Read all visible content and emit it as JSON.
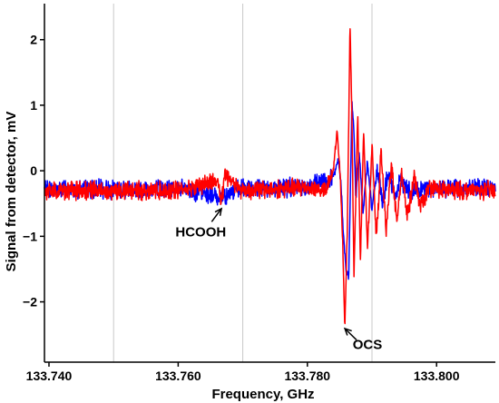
{
  "chart_data": {
    "type": "line",
    "xlabel": "Frequency, GHz",
    "ylabel": "Signal from detector, mV",
    "xlim": [
      133.7393,
      133.8091
    ],
    "ylim": [
      -2.92,
      2.55
    ],
    "x_ticks": [
      133.74,
      133.76,
      133.78,
      133.8
    ],
    "x_tick_labels": [
      "133.740",
      "133.760",
      "133.780",
      "133.800"
    ],
    "y_ticks": [
      2,
      1,
      0,
      -1,
      -2
    ],
    "y_tick_labels": [
      "2",
      "1",
      "0",
      "−1",
      "−2"
    ],
    "vertical_gridlines": [
      133.75,
      133.77,
      133.79
    ],
    "grid": "vertical only",
    "series": [
      {
        "color": "#0000ff",
        "baseline": -0.28,
        "x": [
          133.7393,
          133.75,
          133.76,
          133.7665,
          133.77,
          133.775,
          133.78,
          133.783,
          133.7842,
          133.7848,
          133.7852,
          133.7856,
          133.786,
          133.7864,
          133.7866,
          133.7869,
          133.7872,
          133.7875,
          133.788,
          133.7886,
          133.7893,
          133.79,
          133.7908,
          133.7916,
          133.7925,
          133.7935,
          133.7945,
          133.796,
          133.798,
          133.8,
          133.8091
        ],
        "y": [
          -0.28,
          -0.28,
          -0.27,
          -0.4,
          -0.27,
          -0.26,
          -0.24,
          -0.15,
          -0.05,
          0.15,
          -0.2,
          -1.0,
          -1.55,
          -1.6,
          -0.6,
          1.05,
          0.6,
          -0.45,
          0.35,
          -0.65,
          0.15,
          -0.6,
          0.05,
          -0.5,
          -0.05,
          -0.4,
          -0.15,
          -0.32,
          -0.27,
          -0.27,
          -0.27
        ]
      },
      {
        "color": "#ff0000",
        "baseline": -0.3,
        "x": [
          133.7393,
          133.75,
          133.76,
          133.7662,
          133.7667,
          133.7672,
          133.77,
          133.775,
          133.78,
          133.783,
          133.784,
          133.7846,
          133.7851,
          133.7855,
          133.7858,
          133.7862,
          133.7866,
          133.7869,
          133.7872,
          133.7875,
          133.7878,
          133.7882,
          133.7887,
          133.7893,
          133.79,
          133.7907,
          133.7914,
          133.7922,
          133.793,
          133.7938,
          133.7946,
          133.7955,
          133.7965,
          133.7975,
          133.799,
          133.801,
          133.8091
        ],
        "y": [
          -0.3,
          -0.3,
          -0.3,
          -0.15,
          -0.55,
          -0.05,
          -0.3,
          -0.28,
          -0.25,
          -0.3,
          0.0,
          0.6,
          -0.1,
          -1.2,
          -2.4,
          -0.8,
          2.28,
          0.8,
          -1.6,
          -0.4,
          0.9,
          -1.4,
          0.6,
          -1.2,
          0.4,
          -1.05,
          0.3,
          -0.95,
          0.15,
          -0.8,
          0.0,
          -0.7,
          -0.1,
          -0.55,
          -0.25,
          -0.3,
          -0.3
        ]
      }
    ],
    "annotations": [
      {
        "text": "HCOOH",
        "x": 133.7667,
        "y": -0.55,
        "label_x": 133.7635,
        "label_y": -1.0
      },
      {
        "text": "OCS",
        "x": 133.7858,
        "y": -2.38,
        "label_x": 133.7893,
        "label_y": -2.72
      }
    ]
  }
}
